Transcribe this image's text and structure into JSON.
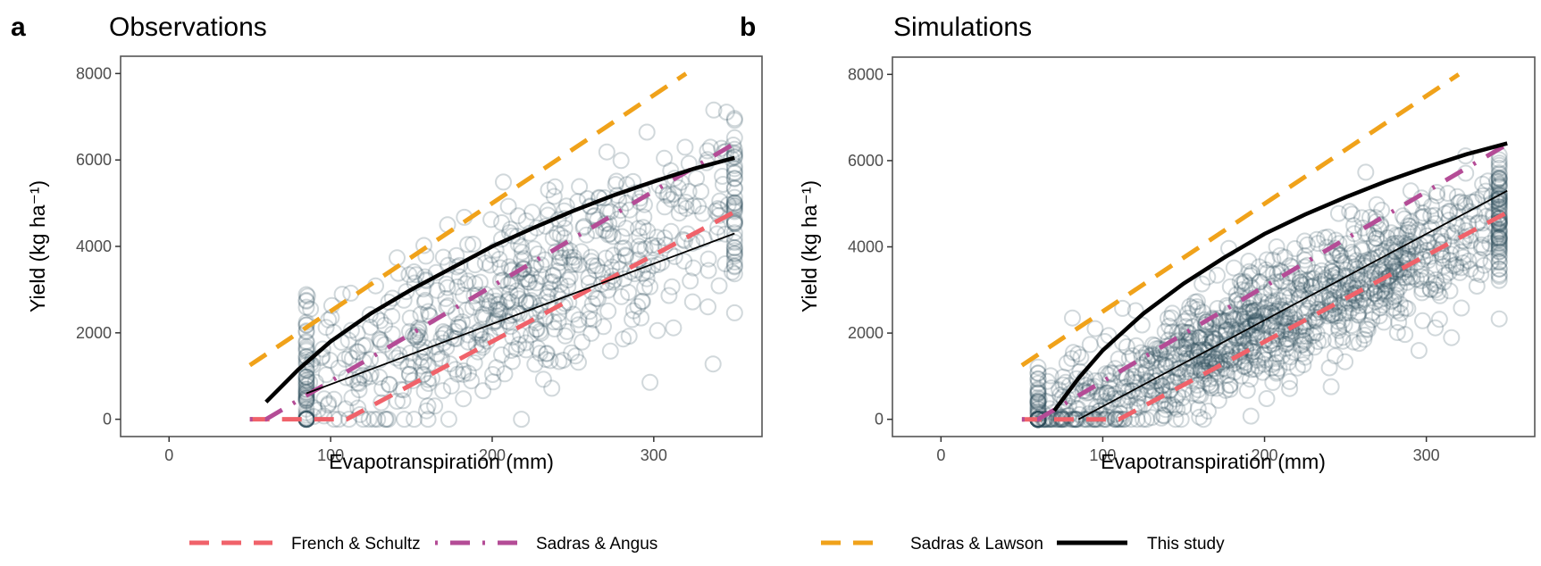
{
  "legend": [
    {
      "key": "french_schultz",
      "label": "French & Schultz",
      "color": "#F0626A",
      "dash": "long-dash"
    },
    {
      "key": "sadras_angus",
      "label": "Sadras & Angus",
      "color": "#B44C96",
      "dash": "dot-dash"
    },
    {
      "key": "sadras_lawson",
      "label": "Sadras & Lawson",
      "color": "#F0A21A",
      "dash": "long-dash"
    },
    {
      "key": "this_study",
      "label": "This study",
      "color": "#000000",
      "dash": "solid"
    }
  ],
  "point_color": "#2F4F5A",
  "chart_data": [
    {
      "panel": "a",
      "type": "scatter",
      "title": "Observations",
      "xlabel": "Evapotranspiration (mm)",
      "ylabel": "Yield (kg ha⁻¹)",
      "xlim": [
        -30,
        367
      ],
      "ylim": [
        -400,
        8400
      ],
      "xticks": [
        0,
        100,
        200,
        300
      ],
      "yticks": [
        0,
        2000,
        4000,
        6000,
        8000
      ],
      "grid": false,
      "n_points": 700,
      "point_cloud": {
        "x_range": [
          85,
          350
        ],
        "center_slope": 14.5,
        "center_intercept": -300,
        "spread": 1100
      },
      "lines": [
        {
          "key": "french_schultz",
          "points": [
            [
              50,
              0
            ],
            [
              110,
              0
            ],
            [
              350,
              4800
            ]
          ]
        },
        {
          "key": "sadras_angus",
          "points": [
            [
              50,
              0
            ],
            [
              60,
              0
            ],
            [
              350,
              6380
            ]
          ]
        },
        {
          "key": "sadras_lawson",
          "points": [
            [
              50,
              1250
            ],
            [
              320,
              8000
            ]
          ]
        },
        {
          "key": "this_study",
          "weight": "thick",
          "points": [
            [
              60,
              400
            ],
            [
              80,
              1150
            ],
            [
              100,
              1800
            ],
            [
              125,
              2450
            ],
            [
              150,
              3000
            ],
            [
              175,
              3500
            ],
            [
              200,
              4000
            ],
            [
              225,
              4420
            ],
            [
              250,
              4820
            ],
            [
              275,
              5180
            ],
            [
              300,
              5500
            ],
            [
              325,
              5800
            ],
            [
              350,
              6050
            ]
          ]
        },
        {
          "key": "this_study",
          "weight": "thin",
          "points": [
            [
              85,
              600
            ],
            [
              350,
              4300
            ]
          ]
        }
      ]
    },
    {
      "panel": "b",
      "type": "scatter",
      "title": "Simulations",
      "xlabel": "Evapotranspiration (mm)",
      "ylabel": "Yield (kg ha⁻¹)",
      "xlim": [
        -30,
        367
      ],
      "ylim": [
        -400,
        8400
      ],
      "xticks": [
        0,
        100,
        200,
        300
      ],
      "yticks": [
        0,
        2000,
        4000,
        6000,
        8000
      ],
      "grid": false,
      "n_points": 1300,
      "point_cloud": {
        "x_range": [
          60,
          345
        ],
        "center_slope": 17,
        "center_intercept": -1200,
        "spread": 700
      },
      "lines": [
        {
          "key": "french_schultz",
          "points": [
            [
              50,
              0
            ],
            [
              110,
              0
            ],
            [
              350,
              4800
            ]
          ]
        },
        {
          "key": "sadras_angus",
          "points": [
            [
              50,
              0
            ],
            [
              60,
              0
            ],
            [
              350,
              6380
            ]
          ]
        },
        {
          "key": "sadras_lawson",
          "points": [
            [
              50,
              1250
            ],
            [
              320,
              8000
            ]
          ]
        },
        {
          "key": "this_study",
          "weight": "thick",
          "points": [
            [
              70,
              200
            ],
            [
              85,
              950
            ],
            [
              100,
              1600
            ],
            [
              125,
              2450
            ],
            [
              150,
              3150
            ],
            [
              175,
              3750
            ],
            [
              200,
              4300
            ],
            [
              225,
              4750
            ],
            [
              250,
              5150
            ],
            [
              275,
              5520
            ],
            [
              300,
              5850
            ],
            [
              325,
              6150
            ],
            [
              350,
              6400
            ]
          ]
        },
        {
          "key": "this_study",
          "weight": "thin",
          "points": [
            [
              85,
              0
            ],
            [
              350,
              5300
            ]
          ]
        }
      ]
    }
  ]
}
